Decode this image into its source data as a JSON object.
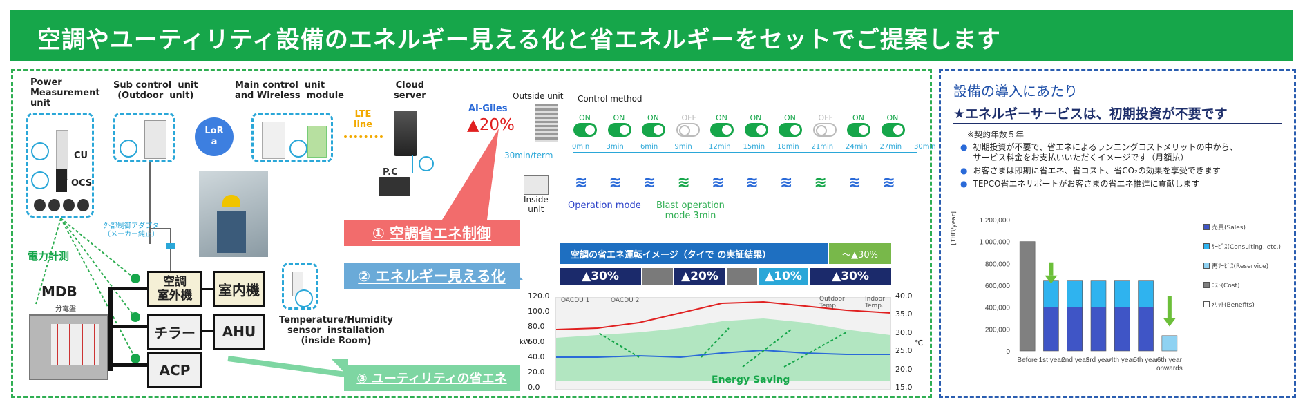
{
  "title": "空調やユーティリティ設備のエネルギー見える化と省エネルギーをセットでご提案します",
  "units": {
    "power": "Power\nMeasurement\nunit",
    "sub": "Sub control  unit\n(Outdoor  unit)",
    "main": "Main control  unit\nand Wireless  module",
    "cloud": "Cloud\nserver",
    "cu": "CU",
    "ocs": "OCS",
    "lora": "LoR\na",
    "lte": "LTE\nline",
    "pc": "P.C",
    "adapter": "外部制御アダプタ\n（メーカー純正）",
    "power_meas": "電力計測",
    "mdb": "MDB",
    "mdb_sub": "分電盤",
    "ac_outdoor": "空調\n室外機",
    "ac_indoor": "室内機",
    "chiller": "チラー",
    "ahu": "AHU",
    "acp": "ACP",
    "sensor": "Temperature/Humidity\nsensor  installation\n(inside Room)"
  },
  "callouts": {
    "c1": "① 空調省エネ制御",
    "c2": "② エネルギー見える化",
    "c3": "③ ユーティリティの省エネ"
  },
  "control": {
    "brand": "AI-Giles",
    "saving": "▲20%",
    "outside_unit": "Outside unit",
    "method": "Control method",
    "term": "30min/term",
    "inside_unit": "Inside\nunit",
    "op_mode": "Operation mode",
    "blast_mode": "Blast operation\nmode 3min",
    "states": [
      "ON",
      "ON",
      "ON",
      "OFF",
      "ON",
      "ON",
      "ON",
      "OFF",
      "ON",
      "ON"
    ],
    "times": [
      "0min",
      "3min",
      "6min",
      "9min",
      "12min",
      "15min",
      "18min",
      "21min",
      "24min",
      "27min",
      "30min"
    ],
    "on_color": "#16a64a",
    "off_color": "#bbbbbb"
  },
  "image_panel": {
    "header": "空調の省エネ運転イメージ（タイで の実証結果）",
    "header_right": "～▲30%",
    "segments": [
      "▲30%",
      "",
      "▲20%",
      "",
      "▲10%",
      "▲30%"
    ]
  },
  "chart_left": {
    "legend1": "OACDU 1",
    "legend2": "OACDU 2",
    "legend3": "Outdoor\nTemp.",
    "legend4": "Indoor\nTemp.",
    "y_ticks": [
      "120.0",
      "100.0",
      "80.0",
      "60.0",
      "40.0",
      "20.0",
      "0.0"
    ],
    "y2_ticks": [
      "40.0",
      "35.0",
      "30.0",
      "25.0",
      "20.0",
      "15.0"
    ],
    "ylabel": "kW",
    "y2label": "℃",
    "annotation": "Energy Saving"
  },
  "right": {
    "heading": "設備の導入にあたり",
    "subheading": "★エネルギーサービスは、初期投資が不要です",
    "note": "※契約年数５年",
    "bullets": [
      "初期投資が不要で、省エネによるランニングコストメリットの中から、\nサービス料金をお支払いいただくイメージです（月額払）",
      "お客さまは即期に省エネ、省コスト、省CO₂の効果を享受できます",
      "TEPCO省エネサポートがお客さまの省エネ推進に貢献します"
    ]
  },
  "chart_data": {
    "type": "bar",
    "categories": [
      "Before",
      "1st year",
      "2nd year",
      "3rd year",
      "4th year",
      "5th year",
      "6th year\nonwards"
    ],
    "ylabel": "[THB/year]",
    "ylim": [
      0,
      1200000
    ],
    "y_ticks": [
      "1,200,000",
      "1,000,000",
      "800,000",
      "600,000",
      "400,000",
      "200,000",
      "0"
    ],
    "series": [
      {
        "name": "売買(Sales)",
        "color": "#3f55c6",
        "values": [
          0,
          400000,
          400000,
          400000,
          400000,
          400000,
          0
        ]
      },
      {
        "name": "ｻｰﾋﾞｽ(Consulting, etc.)",
        "color": "#2fb3ef",
        "values": [
          0,
          240000,
          240000,
          240000,
          240000,
          240000,
          0
        ]
      },
      {
        "name": "再ｻｰﾋﾞｽ(Reservice)",
        "color": "#8fd2f2",
        "values": [
          0,
          0,
          0,
          0,
          0,
          0,
          140000
        ]
      },
      {
        "name": "ｺｽﾄ(Cost)",
        "color": "#808080",
        "values": [
          1000000,
          0,
          0,
          0,
          0,
          0,
          0
        ]
      },
      {
        "name": "ﾒﾘｯﾄ(Benefits)",
        "color": "#ffffff",
        "values": [
          0,
          0,
          0,
          0,
          0,
          0,
          0
        ]
      }
    ]
  }
}
